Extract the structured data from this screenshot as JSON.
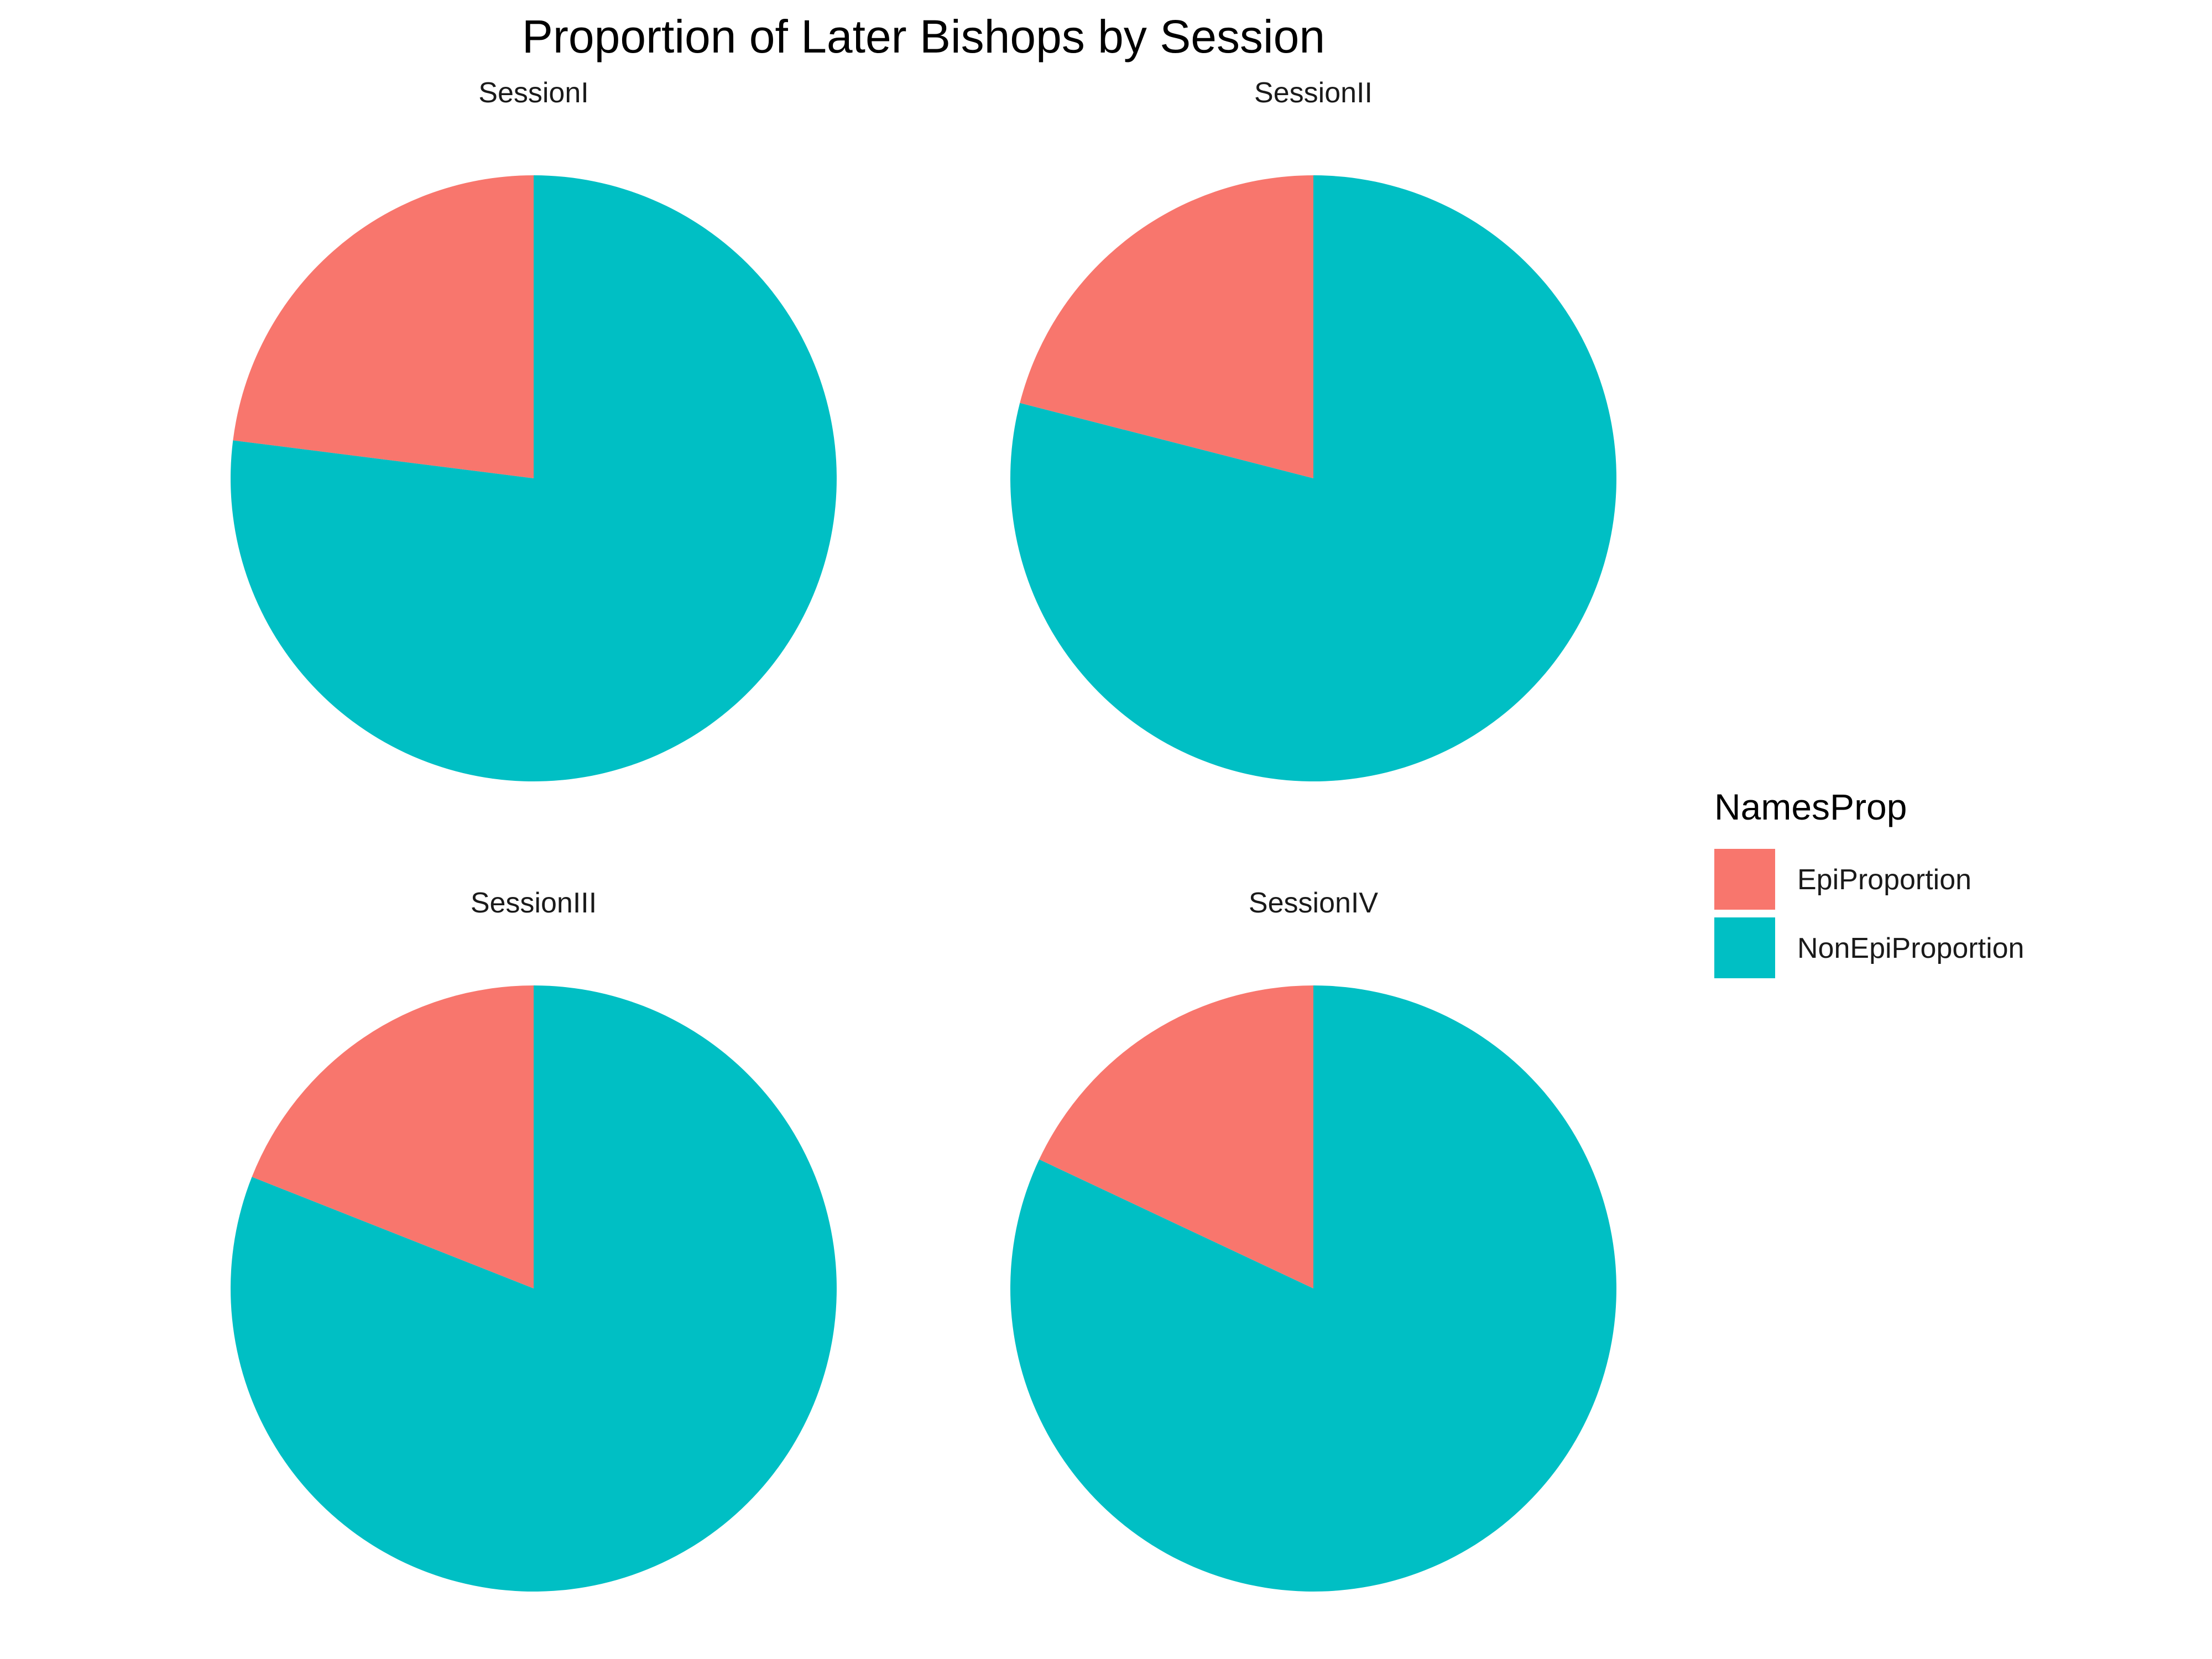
{
  "chart_data": {
    "type": "pie",
    "title": "Proportion of Later Bishops by Session",
    "legend": {
      "title": "NamesProp",
      "placement": "right",
      "entries": [
        {
          "label": "EpiProportion",
          "color": "#F8766D"
        },
        {
          "label": "NonEpiProportion",
          "color": "#00BFC4"
        }
      ]
    },
    "facets": [
      {
        "name": "SessionI",
        "slices": [
          {
            "label": "EpiProportion",
            "value": 0.23
          },
          {
            "label": "NonEpiProportion",
            "value": 0.77
          }
        ]
      },
      {
        "name": "SessionII",
        "slices": [
          {
            "label": "EpiProportion",
            "value": 0.21
          },
          {
            "label": "NonEpiProportion",
            "value": 0.79
          }
        ]
      },
      {
        "name": "SessionIII",
        "slices": [
          {
            "label": "EpiProportion",
            "value": 0.19
          },
          {
            "label": "NonEpiProportion",
            "value": 0.81
          }
        ]
      },
      {
        "name": "SessionIV",
        "slices": [
          {
            "label": "EpiProportion",
            "value": 0.18
          },
          {
            "label": "NonEpiProportion",
            "value": 0.82
          }
        ]
      }
    ]
  }
}
